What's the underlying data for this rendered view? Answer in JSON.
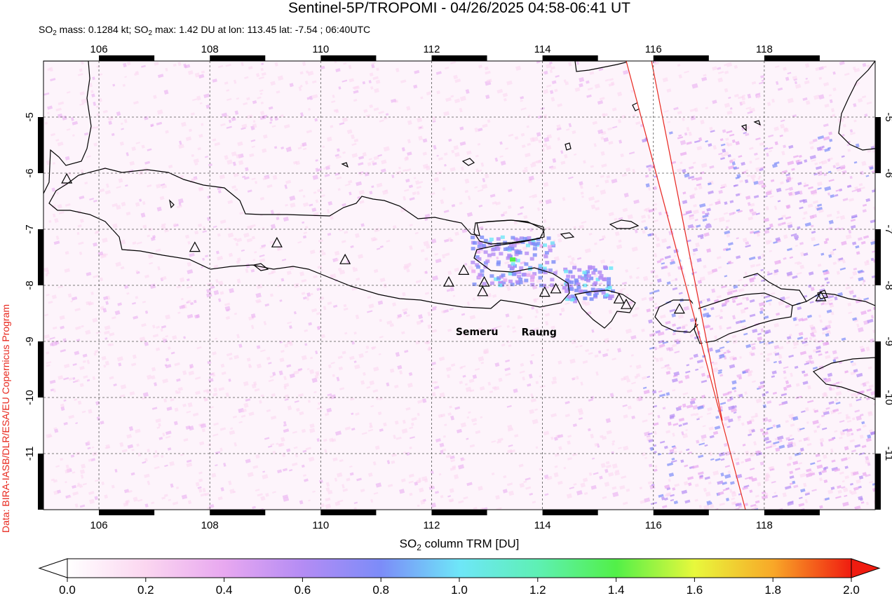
{
  "title": "Sentinel-5P/TROPOMI - 04/26/2025 04:58-06:41 UT",
  "subtitle": {
    "part1": "SO",
    "sub1": "2",
    "part2": " mass: 0.1284 kt; SO",
    "sub2": "2",
    "part3": " max: 1.42 DU at lon: 113.45 lat: -7.54 ; 06:40UTC"
  },
  "credit": "Data: BIRA-IASB/DLR/ESA/EU Copernicus Program",
  "map": {
    "lon_range": [
      105.0,
      120.0
    ],
    "lat_range": [
      -12.0,
      -4.0
    ],
    "lon_ticks": [
      "106",
      "108",
      "110",
      "112",
      "114",
      "116",
      "118"
    ],
    "lat_ticks": [
      "-5",
      "-6",
      "-7",
      "-8",
      "-9",
      "-10",
      "-11"
    ],
    "grid": "dashed",
    "coastline_color": "#000000",
    "swath_edge_color": "#e8281e",
    "volcano_labels": [
      {
        "name": "Semeru",
        "lon": 112.92,
        "lat": -8.11
      },
      {
        "name": "Raung",
        "lon": 114.04,
        "lat": -8.12
      }
    ],
    "volcanoes": [
      {
        "lon": 107.73,
        "lat": -7.32
      },
      {
        "lon": 109.21,
        "lat": -7.24
      },
      {
        "lon": 110.44,
        "lat": -7.54
      },
      {
        "lon": 112.31,
        "lat": -7.94
      },
      {
        "lon": 112.58,
        "lat": -7.73
      },
      {
        "lon": 112.92,
        "lat": -8.11
      },
      {
        "lon": 112.95,
        "lat": -7.94
      },
      {
        "lon": 114.04,
        "lat": -8.12
      },
      {
        "lon": 114.24,
        "lat": -8.06
      },
      {
        "lon": 115.38,
        "lat": -8.24
      },
      {
        "lon": 115.51,
        "lat": -8.34
      },
      {
        "lon": 116.47,
        "lat": -8.42
      },
      {
        "lon": 105.42,
        "lat": -6.1
      },
      {
        "lon": 119.02,
        "lat": -8.2
      }
    ],
    "so2_max": {
      "value": 1.42,
      "lon": 113.45,
      "lat": -7.54
    }
  },
  "colorbar": {
    "label_part1": "SO",
    "label_sub": "2",
    "label_part2": " column TRM [DU]",
    "ticks": [
      "0.0",
      "0.2",
      "0.4",
      "0.6",
      "0.8",
      "1.0",
      "1.2",
      "1.4",
      "1.6",
      "1.8",
      "2.0"
    ],
    "range": [
      0.0,
      2.0
    ],
    "colors": [
      "#ffffff",
      "#fbd6f0",
      "#e8a8f0",
      "#b48cf4",
      "#7c8cf8",
      "#6ee6f8",
      "#5ef0b4",
      "#52f048",
      "#e8f83c",
      "#f8a828",
      "#f01c10"
    ]
  }
}
